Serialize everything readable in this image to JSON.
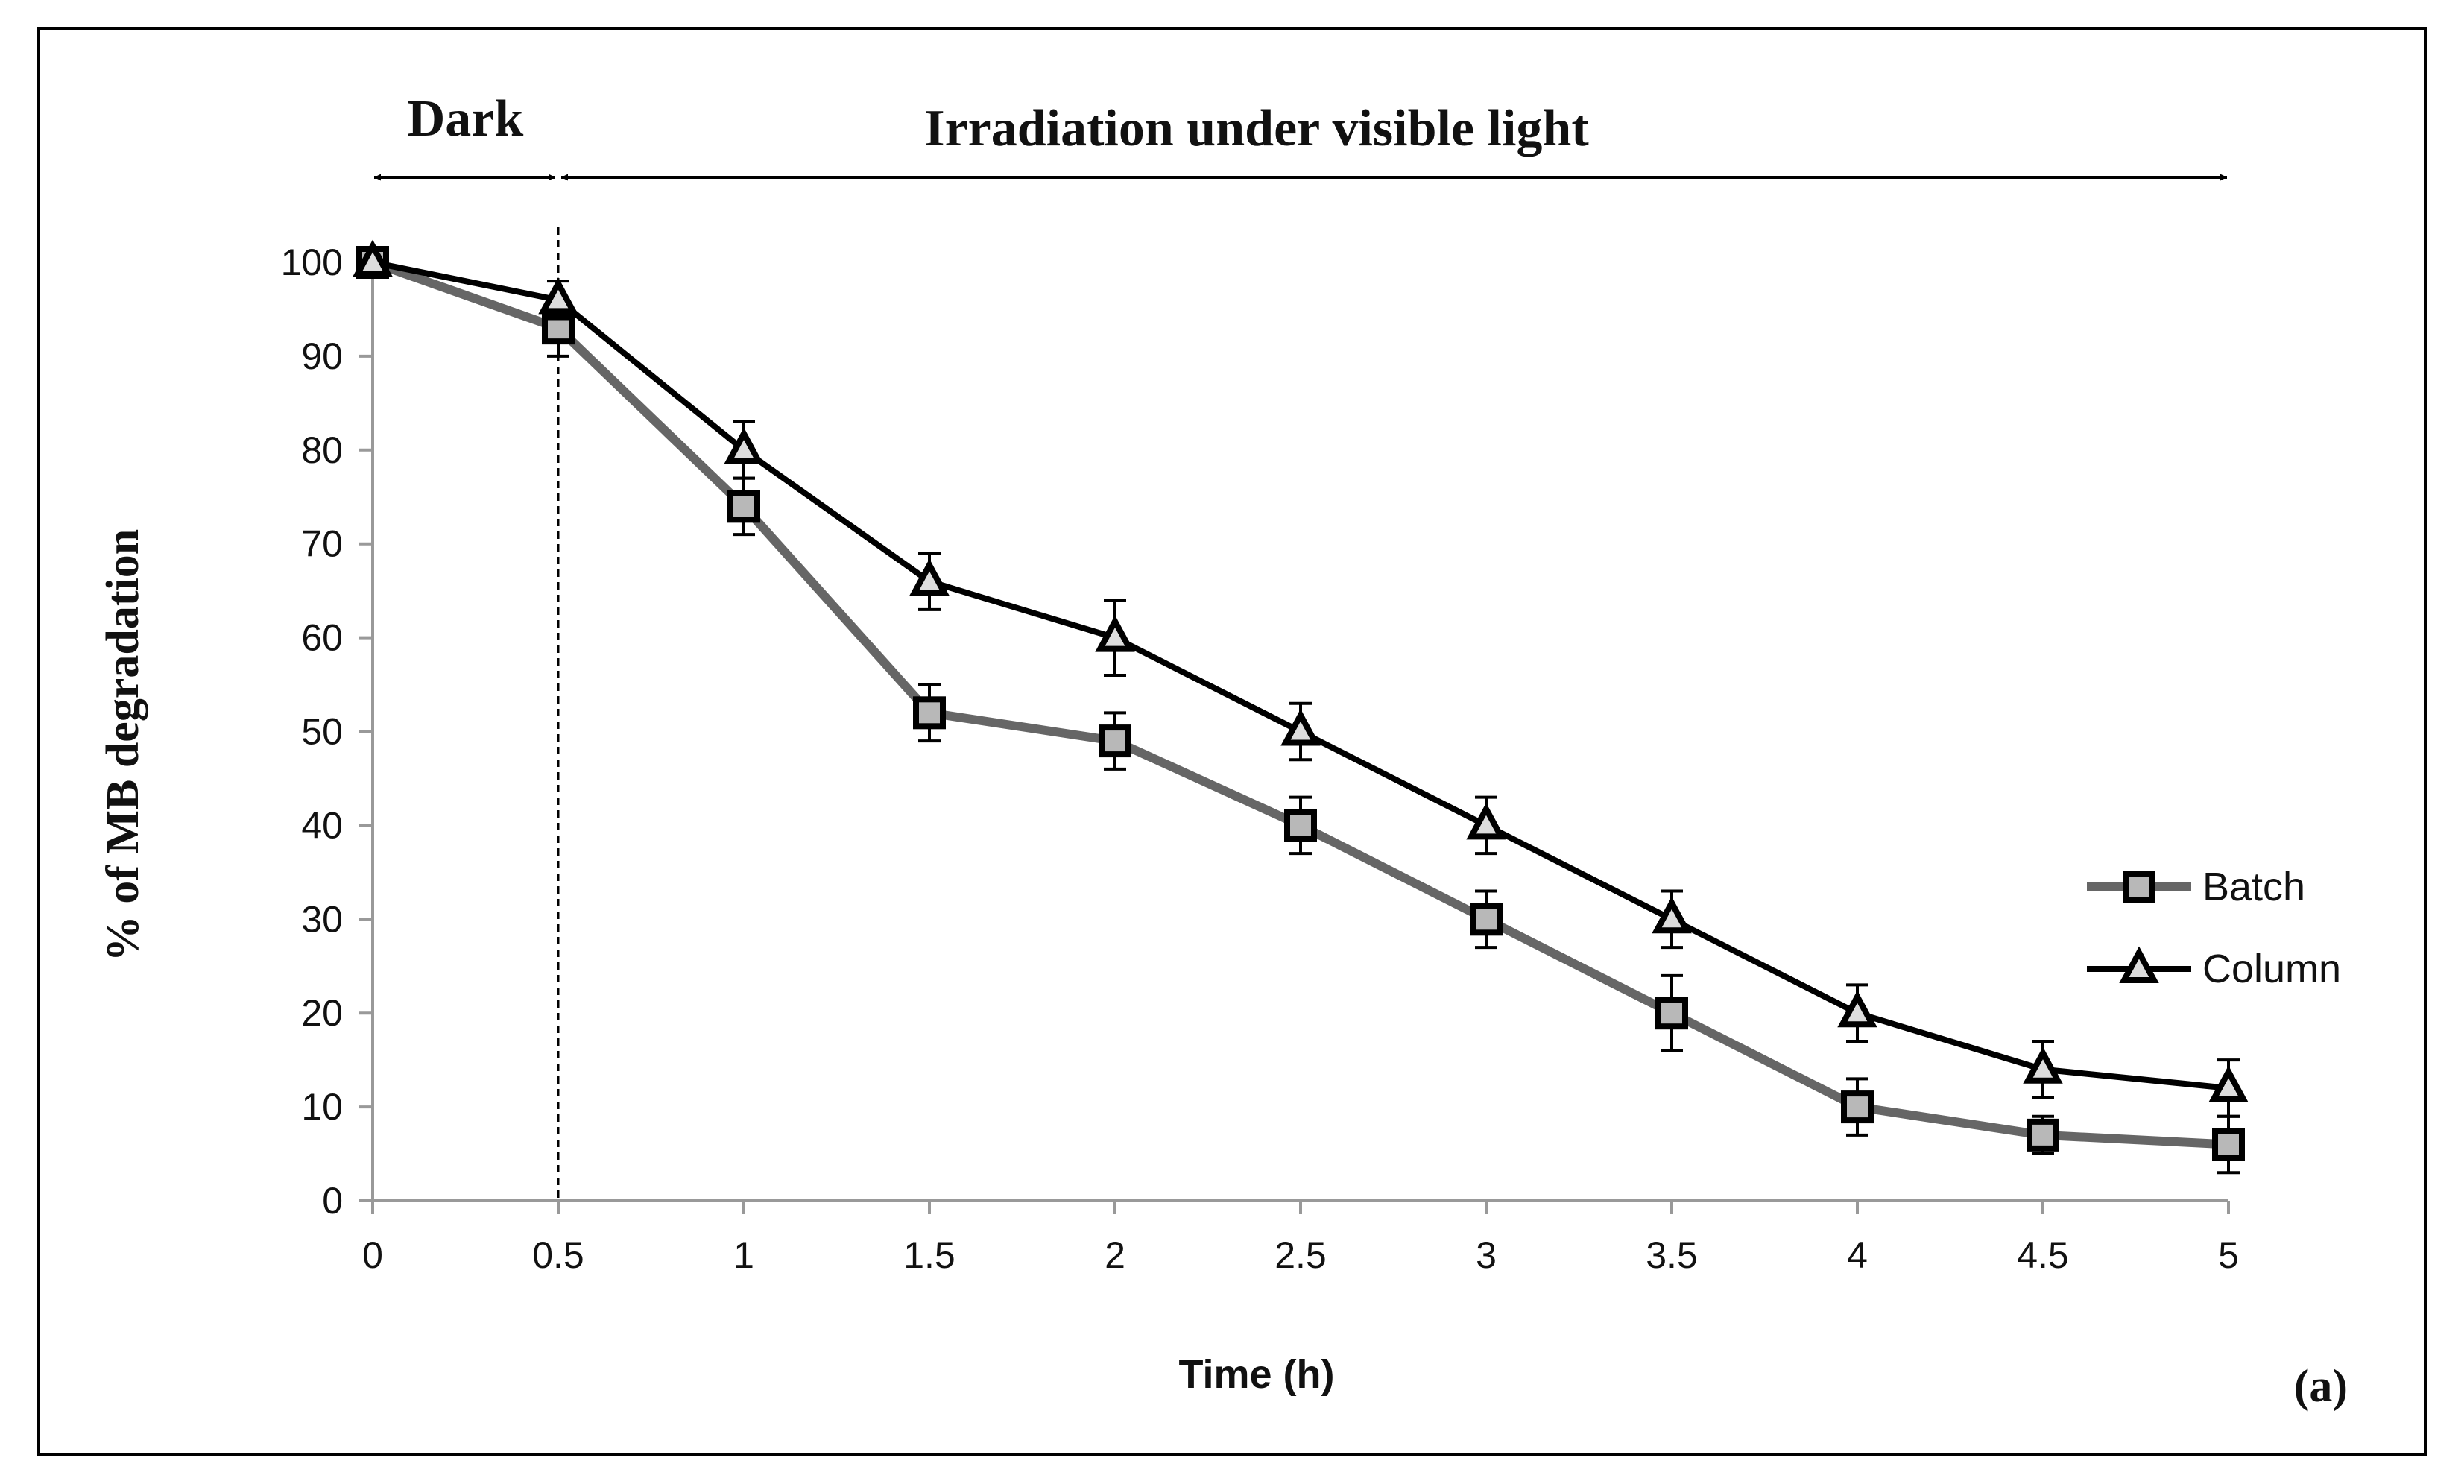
{
  "chart_data": {
    "type": "line",
    "title": "",
    "xlabel": "Time (h)",
    "ylabel": "% of MB degradation",
    "xlim": [
      0,
      5
    ],
    "ylim": [
      0,
      100
    ],
    "x_ticks": [
      "0",
      "0.5",
      "1",
      "1.5",
      "2",
      "2.5",
      "3",
      "3.5",
      "4",
      "4.5",
      "5"
    ],
    "y_ticks": [
      "0",
      "10",
      "20",
      "30",
      "40",
      "50",
      "60",
      "70",
      "80",
      "90",
      "100"
    ],
    "x": [
      0,
      0.5,
      1,
      1.5,
      2,
      2.5,
      3,
      3.5,
      4,
      4.5,
      5
    ],
    "series": [
      {
        "name": "Batch",
        "marker": "square",
        "line_color": "#666666",
        "marker_fill": "#b8b8b8",
        "values": [
          100,
          93,
          74,
          52,
          49,
          40,
          30,
          20,
          10,
          7,
          6
        ],
        "errors": [
          0,
          3,
          3,
          3,
          3,
          3,
          3,
          4,
          3,
          2,
          3
        ]
      },
      {
        "name": "Column",
        "marker": "triangle",
        "line_color": "#000000",
        "marker_fill": "#dddddd",
        "values": [
          100,
          96,
          80,
          66,
          60,
          50,
          40,
          30,
          20,
          14,
          12
        ],
        "errors": [
          0,
          2,
          3,
          3,
          4,
          3,
          3,
          3,
          3,
          3,
          3
        ]
      }
    ],
    "annotations": {
      "dark_label": "Dark",
      "irradiation_label": "Irradiation under visible light",
      "dark_range": [
        0,
        0.5
      ],
      "irradiation_range": [
        0.5,
        5
      ],
      "divider_x": 0.5
    },
    "panel_label": "(a)",
    "legend_position": "right"
  }
}
